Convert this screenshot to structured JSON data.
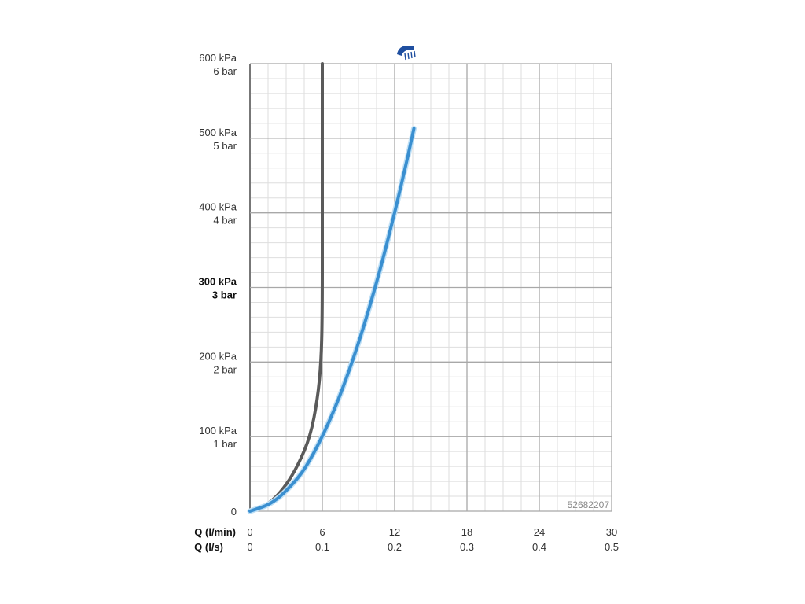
{
  "chart_data": {
    "type": "line",
    "title": "",
    "x_primary": {
      "label": "Q (l/min)",
      "ticks": [
        0,
        6,
        12,
        18,
        24,
        30
      ],
      "tick_labels": [
        "0",
        "6",
        "12",
        "18",
        "24",
        "30"
      ],
      "range": [
        0,
        30
      ]
    },
    "x_secondary": {
      "label": "Q (l/s)",
      "tick_labels": [
        "0",
        "0.1",
        "0.2",
        "0.3",
        "0.4",
        "0.5"
      ]
    },
    "y": {
      "range": [
        0,
        600
      ],
      "ticks": [
        0,
        100,
        200,
        300,
        400,
        500,
        600
      ],
      "tick_labels_kpa": [
        "0",
        "100 kPa",
        "200 kPa",
        "300 kPa",
        "400 kPa",
        "500 kPa",
        "600 kPa"
      ],
      "tick_labels_bar": [
        "",
        "1 bar",
        "2 bar",
        "3 bar",
        "4 bar",
        "5 bar",
        "6 bar"
      ],
      "bold_tick": 300
    },
    "grid": true,
    "series": [
      {
        "color": "#5a5a5a",
        "points": [
          [
            0,
            0
          ],
          [
            1,
            5
          ],
          [
            2,
            16
          ],
          [
            3,
            35
          ],
          [
            4,
            62
          ],
          [
            5,
            100
          ],
          [
            5.6,
            150
          ],
          [
            5.9,
            200
          ],
          [
            6,
            260
          ],
          [
            6,
            400
          ],
          [
            6,
            600
          ]
        ]
      },
      {
        "color": "#3a8fd0",
        "points": [
          [
            0,
            0
          ],
          [
            2,
            11
          ],
          [
            4,
            44
          ],
          [
            5,
            69
          ],
          [
            6,
            100
          ],
          [
            7,
            136
          ],
          [
            8,
            178
          ],
          [
            9,
            225
          ],
          [
            10,
            278
          ],
          [
            11,
            336
          ],
          [
            12,
            400
          ],
          [
            12.5,
            434
          ],
          [
            12.9,
            462
          ],
          [
            13.1,
            476
          ],
          [
            13.6,
            513
          ]
        ]
      }
    ],
    "annotations": {
      "product_code": "52682207"
    },
    "icon": "shower-head-icon"
  },
  "colors": {
    "grid_major": "#a8a8a8",
    "grid_minor": "#dedede",
    "axis": "#777777",
    "icon": "#1f4fa0"
  }
}
